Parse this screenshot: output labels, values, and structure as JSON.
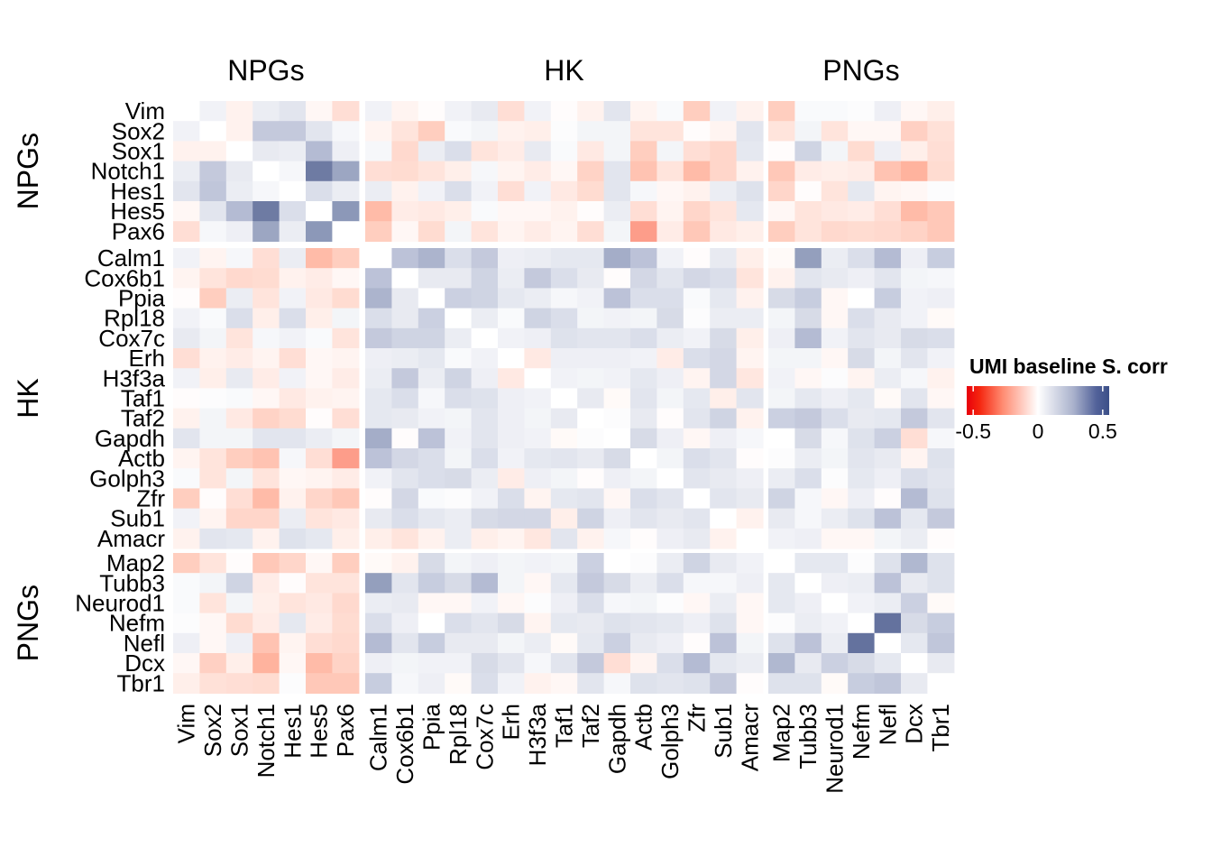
{
  "chart_data": {
    "type": "heatmap",
    "title": "",
    "groups": [
      {
        "name": "NPGs",
        "genes": [
          "Vim",
          "Sox2",
          "Sox1",
          "Notch1",
          "Hes1",
          "Hes5",
          "Pax6"
        ]
      },
      {
        "name": "HK",
        "genes": [
          "Calm1",
          "Cox6b1",
          "Ppia",
          "Rpl18",
          "Cox7c",
          "Erh",
          "H3f3a",
          "Taf1",
          "Taf2",
          "Gapdh",
          "Actb",
          "Golph3",
          "Zfr",
          "Sub1",
          "Amacr"
        ]
      },
      {
        "name": "PNGs",
        "genes": [
          "Map2",
          "Tubb3",
          "Neurod1",
          "Nefm",
          "Nefl",
          "Dcx",
          "Tbr1"
        ]
      }
    ],
    "legend": {
      "title": "UMI baseline S. corr",
      "ticks": [
        "-0.5",
        "0",
        "0.5"
      ],
      "tick_values": [
        -0.5,
        0,
        0.5
      ],
      "range": [
        -0.55,
        0.55
      ],
      "low_color": "#e8000b",
      "mid_color": "#ffffff",
      "high_color": "#3b4f88",
      "placement": "right"
    },
    "matrix": [
      [
        0,
        0.05,
        -0.05,
        0.07,
        0.1,
        -0.03,
        -0.12,
        0.05,
        -0.04,
        -0.01,
        0.05,
        0.08,
        -0.12,
        0.05,
        -0.01,
        -0.05,
        0.1,
        -0.04,
        0.02,
        -0.18,
        0.05,
        -0.05,
        -0.18,
        0.02,
        0.02,
        0.01,
        0.06,
        -0.03,
        -0.06
      ],
      [
        0.05,
        0,
        -0.05,
        0.18,
        0.18,
        0.1,
        0.03,
        -0.04,
        -0.1,
        -0.18,
        0.02,
        0.04,
        -0.05,
        -0.06,
        0.01,
        0.04,
        0.04,
        -0.1,
        -0.1,
        -0.01,
        -0.04,
        0.1,
        -0.1,
        0.04,
        -0.1,
        -0.03,
        -0.03,
        -0.17,
        -0.11
      ],
      [
        -0.05,
        -0.05,
        0,
        0.08,
        0.07,
        0.22,
        0.06,
        0.03,
        -0.14,
        0.07,
        0.12,
        -0.1,
        -0.07,
        0.08,
        0.02,
        -0.08,
        0.04,
        -0.18,
        0.04,
        -0.12,
        -0.15,
        0.09,
        -0.01,
        0.15,
        0.04,
        -0.13,
        0.06,
        -0.06,
        -0.12
      ],
      [
        0.07,
        0.18,
        0.08,
        0,
        0.03,
        0.4,
        0.28,
        -0.12,
        -0.13,
        -0.1,
        -0.06,
        0.03,
        -0.04,
        -0.07,
        -0.03,
        -0.16,
        0.1,
        -0.22,
        -0.1,
        -0.25,
        -0.15,
        -0.05,
        -0.2,
        -0.07,
        -0.06,
        -0.07,
        -0.22,
        -0.28,
        -0.13
      ],
      [
        0.1,
        0.19,
        0.07,
        0.03,
        0,
        0.12,
        0.07,
        0.07,
        -0.05,
        0.05,
        0.12,
        0.05,
        -0.12,
        0.05,
        -0.08,
        -0.13,
        0.1,
        0.03,
        -0.03,
        -0.05,
        0.07,
        0.11,
        -0.15,
        -0.01,
        -0.1,
        0.09,
        -0.04,
        -0.03,
        0.01
      ],
      [
        -0.03,
        0.1,
        0.22,
        0.4,
        0.12,
        0,
        0.32,
        -0.25,
        -0.07,
        -0.08,
        -0.06,
        0.02,
        -0.03,
        -0.03,
        -0.05,
        -0.01,
        0.07,
        -0.12,
        -0.04,
        -0.15,
        -0.1,
        0.09,
        -0.03,
        -0.1,
        -0.08,
        -0.07,
        -0.12,
        -0.25,
        -0.2
      ],
      [
        -0.12,
        0.03,
        0.06,
        0.28,
        0.07,
        0.32,
        0,
        -0.18,
        -0.03,
        -0.13,
        0.04,
        -0.1,
        -0.04,
        -0.07,
        -0.04,
        -0.12,
        0.04,
        -0.32,
        -0.07,
        -0.2,
        -0.08,
        -0.06,
        -0.18,
        -0.1,
        -0.14,
        -0.13,
        -0.14,
        -0.16,
        -0.2
      ],
      [
        0.05,
        -0.04,
        0.03,
        -0.12,
        0.07,
        -0.25,
        -0.18,
        0,
        0.2,
        0.24,
        0.12,
        0.18,
        0.06,
        0.07,
        0.09,
        0.09,
        0.26,
        0.2,
        0.05,
        -0.01,
        0.08,
        -0.06,
        -0.02,
        0.3,
        0.07,
        0.12,
        0.22,
        0.06,
        0.17
      ],
      [
        -0.04,
        -0.1,
        -0.14,
        -0.13,
        -0.05,
        -0.07,
        -0.03,
        0.2,
        0,
        0.08,
        0.08,
        0.15,
        0.07,
        0.18,
        0.12,
        0.08,
        -0.01,
        0.14,
        0.1,
        0.14,
        0.12,
        -0.1,
        -0.05,
        0.1,
        0.08,
        0.06,
        0.1,
        0.04,
        0.03
      ],
      [
        -0.01,
        -0.18,
        0.07,
        -0.1,
        0.05,
        -0.08,
        -0.13,
        0.24,
        0.08,
        0,
        0.16,
        0.15,
        0.09,
        0.07,
        0.03,
        0.05,
        0.2,
        0.12,
        0.12,
        0.02,
        0.09,
        -0.05,
        0.13,
        0.17,
        -0.03,
        0,
        0.17,
        0.05,
        0.06
      ],
      [
        0.05,
        0.02,
        0.12,
        -0.06,
        0.12,
        -0.06,
        0.04,
        0.12,
        0.08,
        0.16,
        0,
        0.07,
        0.02,
        0.15,
        0.12,
        0.04,
        0.05,
        0.04,
        0.13,
        0.01,
        0.07,
        0.07,
        0.04,
        0.13,
        -0.03,
        0.12,
        0.08,
        0.05,
        -0.02
      ],
      [
        0.08,
        0.04,
        -0.1,
        0.03,
        0.05,
        0.02,
        -0.1,
        0.18,
        0.15,
        0.15,
        0.07,
        0,
        0.05,
        0.06,
        0.11,
        0.1,
        0.1,
        0.12,
        0.07,
        0.05,
        0.13,
        -0.06,
        0.06,
        0.22,
        0.05,
        0.1,
        0.08,
        0.13,
        0.12
      ],
      [
        -0.12,
        -0.05,
        -0.07,
        -0.04,
        -0.12,
        -0.03,
        -0.04,
        0.06,
        0.07,
        0.09,
        0.02,
        0.05,
        0,
        -0.08,
        0.06,
        0.06,
        0.06,
        0.05,
        -0.07,
        0.12,
        0.14,
        -0.04,
        0.04,
        0.04,
        -0.03,
        0.13,
        0.04,
        0.1,
        0.05
      ],
      [
        0.05,
        -0.06,
        0.08,
        -0.07,
        0.05,
        -0.03,
        -0.07,
        0.07,
        0.18,
        0.07,
        0.15,
        0.06,
        -0.08,
        0,
        0.05,
        0.04,
        0.05,
        0.09,
        0.06,
        -0.04,
        0.14,
        -0.09,
        0.05,
        -0.03,
        0.01,
        -0.04,
        0.07,
        0.03,
        -0.05
      ],
      [
        -0.01,
        0.01,
        0.02,
        -0.03,
        -0.08,
        -0.05,
        -0.04,
        0.09,
        0.12,
        0.03,
        0.12,
        0.11,
        0.06,
        0.05,
        0,
        0.08,
        -0.02,
        0.1,
        0.04,
        0.09,
        -0.06,
        0.1,
        0.04,
        0.09,
        0.06,
        0.09,
        -0.02,
        0.1,
        -0.03
      ],
      [
        -0.05,
        0.04,
        -0.08,
        -0.16,
        -0.13,
        -0.01,
        -0.12,
        0.09,
        0.08,
        0.05,
        0.04,
        0.1,
        0.06,
        0.04,
        0.08,
        0,
        0.01,
        0.08,
        -0.01,
        0.1,
        0.15,
        -0.05,
        0.16,
        0.18,
        0.12,
        0.08,
        0.09,
        0.18,
        0.1
      ],
      [
        0.1,
        0.04,
        0.04,
        0.1,
        0.1,
        0.07,
        0.04,
        0.26,
        -0.01,
        0.2,
        0.05,
        0.1,
        0.06,
        0.05,
        -0.02,
        0.01,
        0,
        0.13,
        0.06,
        -0.03,
        0.06,
        0.03,
        0,
        0.13,
        0.03,
        0.11,
        0.16,
        -0.12,
        0.03
      ],
      [
        -0.04,
        -0.1,
        -0.18,
        -0.22,
        0.03,
        -0.12,
        -0.32,
        0.2,
        0.14,
        0.12,
        0.04,
        0.12,
        0.05,
        0.09,
        0.1,
        0.08,
        0.13,
        0,
        0.04,
        0.12,
        0.1,
        -0.01,
        0.01,
        0.07,
        0.04,
        0.1,
        0.08,
        -0.04,
        0.11
      ],
      [
        0.02,
        -0.1,
        0.04,
        -0.1,
        -0.03,
        -0.04,
        -0.07,
        0.05,
        0.1,
        0.12,
        0.13,
        0.07,
        -0.07,
        0.06,
        0.04,
        -0.01,
        0.06,
        0.04,
        0,
        0.1,
        0.08,
        0.06,
        0.07,
        0.12,
        0.01,
        0.09,
        0.06,
        0.12,
        0.1
      ],
      [
        -0.18,
        -0.01,
        -0.12,
        -0.25,
        -0.05,
        -0.15,
        -0.2,
        -0.01,
        0.14,
        0.02,
        0.01,
        0.05,
        0.12,
        -0.04,
        0.09,
        0.1,
        -0.03,
        0.12,
        0.1,
        0,
        0.1,
        0.08,
        0.15,
        0.03,
        -0.03,
        0.06,
        -0.01,
        0.22,
        0.11
      ],
      [
        0.05,
        -0.04,
        -0.15,
        -0.15,
        0.07,
        -0.1,
        -0.08,
        0.08,
        0.12,
        0.09,
        0.07,
        0.13,
        0.14,
        0.14,
        -0.06,
        0.15,
        0.06,
        0.1,
        0.08,
        0.1,
        0,
        -0.05,
        0.08,
        0.03,
        0.07,
        0.11,
        0.2,
        0.09,
        0.18
      ],
      [
        -0.05,
        0.1,
        0.09,
        -0.05,
        0.11,
        0.09,
        -0.06,
        -0.06,
        -0.1,
        -0.05,
        0.07,
        -0.06,
        -0.04,
        -0.09,
        0.1,
        -0.05,
        0.03,
        -0.01,
        0.06,
        0.08,
        -0.05,
        0,
        0.05,
        0.06,
        -0.03,
        -0.03,
        0.04,
        0.07,
        -0.01
      ],
      [
        -0.18,
        -0.1,
        -0.01,
        -0.2,
        -0.15,
        -0.03,
        -0.18,
        -0.02,
        -0.05,
        0.13,
        0.04,
        0.06,
        0.04,
        0.05,
        0.04,
        0.16,
        0,
        0.01,
        0.07,
        0.15,
        0.08,
        0.05,
        0,
        0.09,
        0.09,
        0.01,
        0.11,
        0.23,
        0.11
      ],
      [
        0.02,
        0.04,
        0.15,
        -0.07,
        -0.01,
        -0.1,
        -0.1,
        0.3,
        0.1,
        0.17,
        0.13,
        0.22,
        0.04,
        -0.03,
        0.09,
        0.18,
        0.13,
        0.07,
        0.12,
        0.03,
        0.03,
        0.06,
        0.09,
        0,
        0.06,
        0.07,
        0.2,
        0.08,
        0.11
      ],
      [
        0.02,
        -0.1,
        0.04,
        -0.06,
        -0.1,
        -0.08,
        -0.14,
        0.07,
        0.08,
        -0.03,
        -0.03,
        0.05,
        -0.03,
        0.01,
        0.06,
        0.12,
        0.03,
        0.04,
        0.01,
        -0.03,
        0.07,
        -0.03,
        0.09,
        0.06,
        0,
        0.05,
        0.07,
        0.16,
        -0.02
      ],
      [
        0.01,
        -0.03,
        -0.13,
        -0.07,
        0.09,
        -0.07,
        -0.13,
        0.12,
        0.06,
        0,
        0.12,
        0.1,
        0.13,
        -0.04,
        0.09,
        0.08,
        0.11,
        0.1,
        0.09,
        0.06,
        0.11,
        -0.03,
        0.01,
        0.07,
        0.05,
        0,
        0.42,
        0.13,
        0.17
      ],
      [
        0.06,
        -0.03,
        0.06,
        -0.22,
        -0.04,
        -0.12,
        -0.14,
        0.22,
        0.1,
        0.17,
        0.08,
        0.08,
        0.04,
        0.07,
        -0.02,
        0.09,
        0.16,
        0.08,
        0.06,
        -0.01,
        0.2,
        0.04,
        0.11,
        0.2,
        0.07,
        0.42,
        0,
        0.09,
        0.19
      ],
      [
        -0.03,
        -0.17,
        -0.06,
        -0.28,
        -0.03,
        -0.25,
        -0.16,
        0.06,
        0.04,
        0.05,
        0.05,
        0.13,
        0.1,
        0.03,
        0.1,
        0.18,
        -0.12,
        -0.04,
        0.12,
        0.22,
        0.09,
        0.07,
        0.23,
        0.08,
        0.16,
        0.13,
        0.09,
        0,
        0.08
      ],
      [
        -0.06,
        -0.11,
        -0.12,
        -0.13,
        0.01,
        -0.2,
        -0.2,
        0.17,
        0.03,
        0.06,
        -0.02,
        0.12,
        0.05,
        -0.05,
        -0.03,
        0.1,
        0.03,
        0.11,
        0.1,
        0.11,
        0.18,
        -0.01,
        0.11,
        0.11,
        -0.02,
        0.17,
        0.19,
        0.08,
        0
      ]
    ]
  }
}
